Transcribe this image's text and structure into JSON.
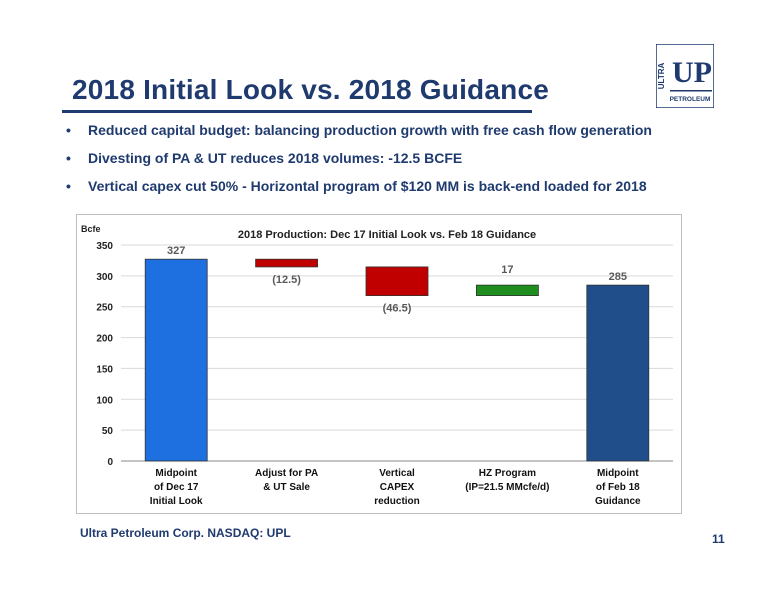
{
  "slide": {
    "title": "2018 Initial Look vs. 2018 Guidance",
    "bullets": [
      "Reduced capital budget:  balancing production growth with free cash flow generation",
      "Divesting of PA & UT reduces 2018 volumes:  -12.5 BCFE",
      "Vertical capex cut 50% - Horizontal program of $120 MM is back-end loaded for 2018"
    ],
    "footer": "Ultra Petroleum Corp. NASDAQ: UPL",
    "page_number": "11",
    "logo": {
      "vertical_text": "ULTRA",
      "letters": "UP",
      "bottom_text": "PETROLEUM"
    }
  },
  "colors": {
    "title": "#1F3A6E",
    "bar_start": "#1E6FE0",
    "bar_negative": "#C00000",
    "bar_positive": "#1E8E1E",
    "bar_end": "#1F4E8A"
  },
  "chart_data": {
    "type": "bar",
    "subtype": "waterfall",
    "title": "2018 Production:  Dec 17 Initial Look vs. Feb 18 Guidance",
    "ylabel": "Bcfe",
    "ylim": [
      0,
      350
    ],
    "yticks": [
      0,
      50,
      100,
      150,
      200,
      250,
      300,
      350
    ],
    "grid": true,
    "categories": [
      [
        "Midpoint",
        "of Dec 17",
        "Initial Look"
      ],
      [
        "Adjust for PA",
        "& UT Sale"
      ],
      [
        "Vertical",
        "CAPEX",
        "reduction"
      ],
      [
        "HZ Program",
        "(IP=21.5 MMcfe/d)"
      ],
      [
        "Midpoint",
        "of Feb 18",
        "Guidance"
      ]
    ],
    "steps": [
      {
        "kind": "total",
        "value": 327,
        "label": "327"
      },
      {
        "kind": "delta",
        "value": -12.5,
        "label": "(12.5)"
      },
      {
        "kind": "delta",
        "value": -46.5,
        "label": "(46.5)"
      },
      {
        "kind": "delta",
        "value": 17,
        "label": "17"
      },
      {
        "kind": "total",
        "value": 285,
        "label": "285"
      }
    ]
  }
}
